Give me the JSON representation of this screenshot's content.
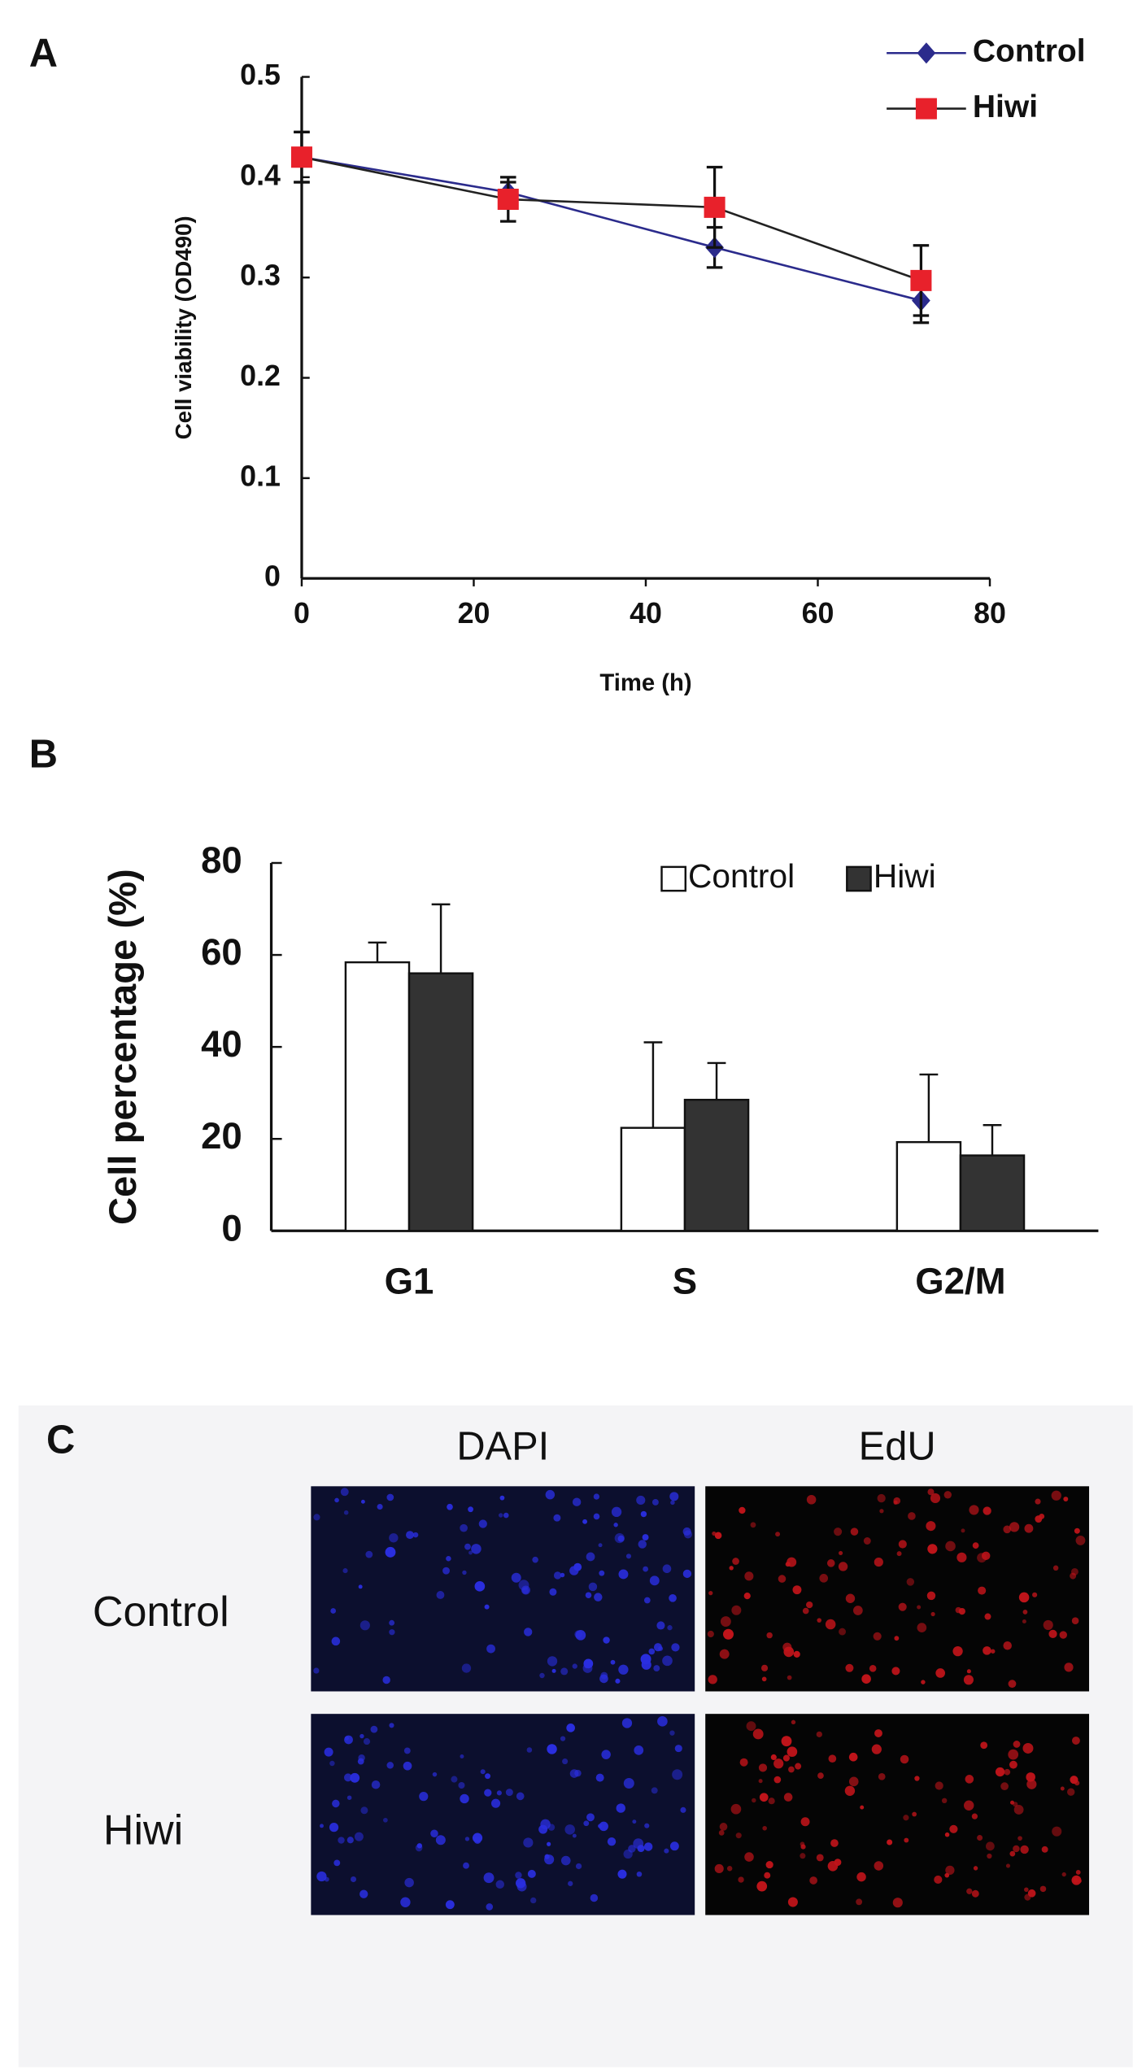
{
  "chart_data": [
    {
      "type": "line",
      "panel": "A",
      "xlabel": "Time (h)",
      "ylabel": "Cell viability (OD490)",
      "x": [
        0,
        24,
        48,
        72
      ],
      "series": [
        {
          "name": "Control",
          "color": "#2b2b8c",
          "line_color": "#2b2b8c",
          "marker": "diamond",
          "values": [
            0.42,
            0.385,
            0.33,
            0.277
          ],
          "errors": [
            0.025,
            0.01,
            0.02,
            0.022
          ]
        },
        {
          "name": "Hiwi",
          "color": "#e8212b",
          "line_color": "#222222",
          "marker": "square",
          "values": [
            0.42,
            0.378,
            0.37,
            0.297
          ],
          "errors": [
            0.025,
            0.022,
            0.04,
            0.035
          ]
        }
      ],
      "xlim": [
        0,
        80
      ],
      "xticks": [
        0,
        20,
        40,
        60,
        80
      ],
      "ylim": [
        0,
        0.5
      ],
      "yticks": [
        0,
        0.1,
        0.2,
        0.3,
        0.4,
        0.5
      ],
      "legend": "upper right"
    },
    {
      "type": "bar",
      "panel": "B",
      "ylabel": "Cell percentage (%)",
      "categories": [
        "G1",
        "S",
        "G2/M"
      ],
      "series": [
        {
          "name": "Control",
          "color": "#ffffff",
          "values": [
            58.4,
            22.4,
            19.3
          ],
          "errors": [
            4.3,
            18.6,
            14.7
          ]
        },
        {
          "name": "Hiwi",
          "color": "#333333",
          "values": [
            56,
            28.5,
            16.4
          ],
          "errors": [
            15,
            8,
            6.6
          ]
        }
      ],
      "ylim": [
        0,
        80
      ],
      "yticks": [
        0,
        20,
        40,
        60,
        80
      ],
      "legend": "upper right"
    }
  ],
  "panel_c": {
    "label": "C",
    "columns": [
      "DAPI",
      "EdU"
    ],
    "rows": [
      "Control",
      "Hiwi"
    ]
  }
}
